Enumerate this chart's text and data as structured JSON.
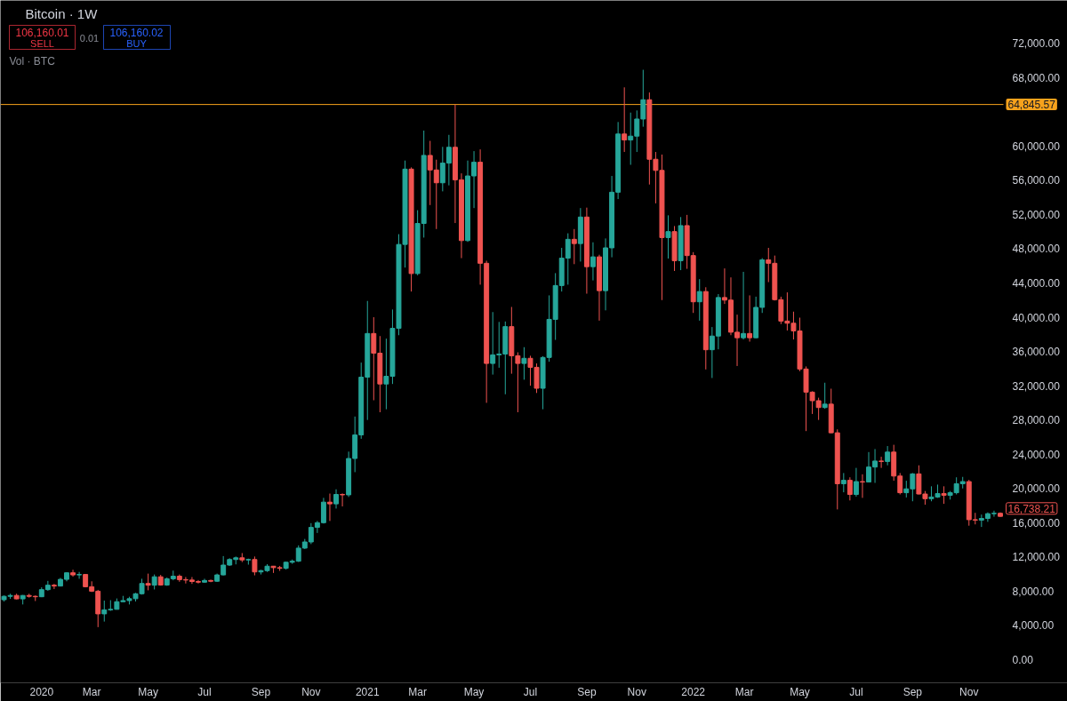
{
  "chart_data": {
    "type": "candlestick",
    "title": "Bitcoin · 1W",
    "x": [
      "2019-11-25",
      "2019-12-02",
      "2019-12-09",
      "2019-12-16",
      "2019-12-23",
      "2019-12-30",
      "2020-01-06",
      "2020-01-13",
      "2020-01-20",
      "2020-01-27",
      "2020-02-03",
      "2020-02-10",
      "2020-02-17",
      "2020-02-24",
      "2020-03-02",
      "2020-03-09",
      "2020-03-16",
      "2020-03-23",
      "2020-03-30",
      "2020-04-06",
      "2020-04-13",
      "2020-04-20",
      "2020-04-27",
      "2020-05-04",
      "2020-05-11",
      "2020-05-18",
      "2020-05-25",
      "2020-06-01",
      "2020-06-08",
      "2020-06-15",
      "2020-06-22",
      "2020-06-29",
      "2020-07-06",
      "2020-07-13",
      "2020-07-20",
      "2020-07-27",
      "2020-08-03",
      "2020-08-10",
      "2020-08-17",
      "2020-08-24",
      "2020-08-31",
      "2020-09-07",
      "2020-09-14",
      "2020-09-21",
      "2020-09-28",
      "2020-10-05",
      "2020-10-12",
      "2020-10-19",
      "2020-10-26",
      "2020-11-02",
      "2020-11-09",
      "2020-11-16",
      "2020-11-23",
      "2020-11-30",
      "2020-12-07",
      "2020-12-14",
      "2020-12-21",
      "2020-12-28",
      "2021-01-04",
      "2021-01-11",
      "2021-01-18",
      "2021-01-25",
      "2021-02-01",
      "2021-02-08",
      "2021-02-15",
      "2021-02-22",
      "2021-03-01",
      "2021-03-08",
      "2021-03-15",
      "2021-03-22",
      "2021-03-29",
      "2021-04-05",
      "2021-04-12",
      "2021-04-19",
      "2021-04-26",
      "2021-05-03",
      "2021-05-10",
      "2021-05-17",
      "2021-05-24",
      "2021-05-31",
      "2021-06-07",
      "2021-06-14",
      "2021-06-21",
      "2021-06-28",
      "2021-07-05",
      "2021-07-12",
      "2021-07-19",
      "2021-07-26",
      "2021-08-02",
      "2021-08-09",
      "2021-08-16",
      "2021-08-23",
      "2021-08-30",
      "2021-09-06",
      "2021-09-13",
      "2021-09-20",
      "2021-09-27",
      "2021-10-04",
      "2021-10-11",
      "2021-10-18",
      "2021-10-25",
      "2021-11-01",
      "2021-11-08",
      "2021-11-15",
      "2021-11-22",
      "2021-11-29",
      "2021-12-06",
      "2021-12-13",
      "2021-12-20",
      "2021-12-27",
      "2022-01-03",
      "2022-01-10",
      "2022-01-17",
      "2022-01-24",
      "2022-01-31",
      "2022-02-07",
      "2022-02-14",
      "2022-02-21",
      "2022-02-28",
      "2022-03-07",
      "2022-03-14",
      "2022-03-21",
      "2022-03-28",
      "2022-04-04",
      "2022-04-11",
      "2022-04-18",
      "2022-04-25",
      "2022-05-02",
      "2022-05-09",
      "2022-05-16",
      "2022-05-23",
      "2022-05-30",
      "2022-06-06",
      "2022-06-13",
      "2022-06-20",
      "2022-06-27",
      "2022-07-04",
      "2022-07-11",
      "2022-07-18",
      "2022-07-25",
      "2022-08-01",
      "2022-08-08",
      "2022-08-15",
      "2022-08-22",
      "2022-08-29",
      "2022-09-05",
      "2022-09-12",
      "2022-09-19",
      "2022-09-26",
      "2022-10-03",
      "2022-10-10",
      "2022-10-17",
      "2022-10-24",
      "2022-10-31",
      "2022-11-07",
      "2022-11-14",
      "2022-11-21",
      "2022-11-28",
      "2022-12-05",
      "2022-12-12"
    ],
    "ohlc": [
      [
        7000,
        7500,
        6800,
        7400
      ],
      [
        7400,
        7700,
        7100,
        7500
      ],
      [
        7500,
        7700,
        7050,
        7100
      ],
      [
        7100,
        7550,
        6450,
        7500
      ],
      [
        7500,
        7700,
        7250,
        7400
      ],
      [
        7400,
        7500,
        6850,
        7350
      ],
      [
        7350,
        8450,
        7300,
        8180
      ],
      [
        8180,
        9200,
        8050,
        8700
      ],
      [
        8700,
        8850,
        8250,
        8600
      ],
      [
        8600,
        9550,
        8550,
        9380
      ],
      [
        9380,
        10200,
        9150,
        10150
      ],
      [
        10150,
        10500,
        9700,
        9900
      ],
      [
        9900,
        10250,
        9450,
        9950
      ],
      [
        9950,
        9970,
        8450,
        8520
      ],
      [
        8520,
        9150,
        7900,
        8000
      ],
      [
        8000,
        8150,
        3800,
        5350
      ],
      [
        5350,
        6900,
        4450,
        5820
      ],
      [
        5820,
        6950,
        5700,
        5880
      ],
      [
        5880,
        7150,
        5850,
        6770
      ],
      [
        6770,
        7450,
        6750,
        6900
      ],
      [
        6900,
        7350,
        6450,
        7120
      ],
      [
        7120,
        7800,
        6800,
        7700
      ],
      [
        7700,
        9450,
        7600,
        8900
      ],
      [
        8900,
        10050,
        8100,
        8700
      ],
      [
        8700,
        9950,
        8200,
        9680
      ],
      [
        9680,
        9900,
        8650,
        8720
      ],
      [
        8720,
        9600,
        8630,
        9450
      ],
      [
        9450,
        10400,
        9270,
        9750
      ],
      [
        9750,
        9950,
        9100,
        9350
      ],
      [
        9350,
        9650,
        8900,
        9300
      ],
      [
        9300,
        9650,
        8850,
        9130
      ],
      [
        9130,
        9300,
        8900,
        9050
      ],
      [
        9050,
        9450,
        9000,
        9250
      ],
      [
        9250,
        9350,
        9050,
        9160
      ],
      [
        9160,
        10050,
        9100,
        9900
      ],
      [
        9900,
        12100,
        9850,
        11050
      ],
      [
        11050,
        11850,
        10950,
        11700
      ],
      [
        11700,
        12050,
        11130,
        11900
      ],
      [
        11900,
        12450,
        11400,
        11650
      ],
      [
        11650,
        11800,
        11100,
        11700
      ],
      [
        11700,
        12050,
        9850,
        10250
      ],
      [
        10250,
        10500,
        9950,
        10400
      ],
      [
        10400,
        11150,
        10250,
        10920
      ],
      [
        10920,
        10950,
        10130,
        10750
      ],
      [
        10750,
        10950,
        10370,
        10670
      ],
      [
        10670,
        11450,
        10530,
        11380
      ],
      [
        11380,
        11700,
        11200,
        11500
      ],
      [
        11500,
        13350,
        11420,
        13030
      ],
      [
        13030,
        14100,
        12930,
        13750
      ],
      [
        13750,
        15950,
        13500,
        15450
      ],
      [
        15450,
        16200,
        14800,
        16000
      ],
      [
        16000,
        18900,
        15900,
        18400
      ],
      [
        18400,
        19400,
        16200,
        18200
      ],
      [
        18200,
        19900,
        17650,
        19300
      ],
      [
        19300,
        19420,
        17900,
        19250
      ],
      [
        19250,
        24300,
        19000,
        23500
      ],
      [
        23500,
        28400,
        21900,
        26250
      ],
      [
        26250,
        34700,
        25800,
        33000
      ],
      [
        33000,
        41900,
        28000,
        38100
      ],
      [
        38100,
        40000,
        30300,
        35800
      ],
      [
        35800,
        37800,
        28900,
        32200
      ],
      [
        32200,
        37500,
        29250,
        33100
      ],
      [
        33100,
        40900,
        32200,
        38700
      ],
      [
        38700,
        49700,
        37900,
        48500
      ],
      [
        48500,
        58300,
        45800,
        57300
      ],
      [
        57300,
        57500,
        43000,
        45100
      ],
      [
        45100,
        52500,
        44900,
        50950
      ],
      [
        50950,
        61800,
        49300,
        58900
      ],
      [
        58900,
        60600,
        53100,
        57200
      ],
      [
        57200,
        58400,
        50300,
        55700
      ],
      [
        55700,
        59900,
        54700,
        58000
      ],
      [
        58000,
        61300,
        55400,
        59850
      ],
      [
        59850,
        64850,
        51000,
        56050
      ],
      [
        56050,
        56800,
        46900,
        48950
      ],
      [
        48950,
        58300,
        48800,
        56500
      ],
      [
        56500,
        59400,
        52750,
        58100
      ],
      [
        58100,
        59600,
        43800,
        46300
      ],
      [
        46300,
        46600,
        30000,
        34600
      ],
      [
        34600,
        40600,
        33300,
        35600
      ],
      [
        35600,
        39450,
        34100,
        35700
      ],
      [
        35700,
        39500,
        31000,
        38900
      ],
      [
        38900,
        41200,
        33400,
        35500
      ],
      [
        35500,
        35900,
        28900,
        34600
      ],
      [
        34600,
        36500,
        32700,
        35200
      ],
      [
        35200,
        35500,
        32000,
        34150
      ],
      [
        34150,
        34600,
        31150,
        31700
      ],
      [
        31700,
        35450,
        29250,
        35300
      ],
      [
        35300,
        42550,
        34800,
        39750
      ],
      [
        39750,
        45150,
        37350,
        43700
      ],
      [
        43700,
        48100,
        43000,
        46900
      ],
      [
        46900,
        49800,
        43800,
        49100
      ],
      [
        49100,
        50300,
        46200,
        48600
      ],
      [
        48600,
        52750,
        46500,
        51700
      ],
      [
        51700,
        52800,
        42750,
        45900
      ],
      [
        45900,
        48750,
        44300,
        47050
      ],
      [
        47050,
        47300,
        39600,
        43100
      ],
      [
        43100,
        49200,
        40800,
        48100
      ],
      [
        48100,
        56500,
        47000,
        54600
      ],
      [
        54600,
        62800,
        53800,
        61400
      ],
      [
        61400,
        66850,
        59300,
        60700
      ],
      [
        60700,
        63900,
        57800,
        61150
      ],
      [
        61150,
        64150,
        59300,
        63150
      ],
      [
        63150,
        68900,
        62250,
        65400
      ],
      [
        65400,
        66250,
        55500,
        58450
      ],
      [
        58450,
        59300,
        53300,
        57150
      ],
      [
        57150,
        59000,
        42000,
        49300
      ],
      [
        49300,
        51900,
        46850,
        50000
      ],
      [
        50000,
        50650,
        45400,
        46600
      ],
      [
        46600,
        51700,
        45500,
        50700
      ],
      [
        50700,
        51950,
        45650,
        47200
      ],
      [
        47200,
        47600,
        40500,
        41800
      ],
      [
        41800,
        44450,
        39600,
        43000
      ],
      [
        43000,
        43500,
        33900,
        36200
      ],
      [
        36200,
        38850,
        32900,
        37800
      ],
      [
        37800,
        42700,
        36250,
        42300
      ],
      [
        42300,
        45700,
        41550,
        42000
      ],
      [
        42000,
        44650,
        37900,
        38250
      ],
      [
        38250,
        40300,
        34300,
        37600
      ],
      [
        37600,
        45300,
        37400,
        38100
      ],
      [
        38100,
        42550,
        37150,
        37600
      ],
      [
        37600,
        42400,
        37550,
        41150
      ],
      [
        41150,
        46900,
        40500,
        46700
      ],
      [
        46700,
        48100,
        44100,
        46300
      ],
      [
        46300,
        47200,
        41950,
        42050
      ],
      [
        42050,
        42400,
        39200,
        39550
      ],
      [
        39550,
        42900,
        38450,
        39300
      ],
      [
        39300,
        40650,
        37400,
        38400
      ],
      [
        38400,
        39950,
        33700,
        33950
      ],
      [
        33950,
        34250,
        26700,
        31250
      ],
      [
        31250,
        31350,
        28700,
        30250
      ],
      [
        30250,
        30600,
        28000,
        29450
      ],
      [
        29450,
        32350,
        29300,
        29850
      ],
      [
        29850,
        31650,
        26450,
        26500
      ],
      [
        26500,
        26900,
        17550,
        20550
      ],
      [
        20550,
        21800,
        19550,
        20950
      ],
      [
        20950,
        21300,
        18600,
        19300
      ],
      [
        19300,
        22400,
        19050,
        20800
      ],
      [
        20800,
        21650,
        18900,
        20750
      ],
      [
        20750,
        24250,
        20700,
        22500
      ],
      [
        22500,
        24600,
        20650,
        23200
      ],
      [
        23200,
        23700,
        22400,
        23150
      ],
      [
        23150,
        24950,
        22700,
        24250
      ],
      [
        24250,
        25100,
        20900,
        21450
      ],
      [
        21450,
        21800,
        19300,
        19500
      ],
      [
        19500,
        20900,
        18950,
        19950
      ],
      [
        19950,
        21800,
        18500,
        21700
      ],
      [
        21700,
        22700,
        19300,
        19350
      ],
      [
        19350,
        19700,
        18100,
        18800
      ],
      [
        18800,
        20250,
        18500,
        19000
      ],
      [
        19000,
        20450,
        18900,
        19400
      ],
      [
        19400,
        20250,
        18200,
        19200
      ],
      [
        19200,
        19700,
        18700,
        19500
      ],
      [
        19500,
        21300,
        19300,
        20550
      ],
      [
        20550,
        21350,
        20000,
        20800
      ],
      [
        20800,
        21000,
        15650,
        16350
      ],
      [
        16350,
        17150,
        15800,
        16300
      ],
      [
        16300,
        16950,
        15500,
        16500
      ],
      [
        16500,
        17200,
        16100,
        17050
      ],
      [
        17050,
        17400,
        16700,
        17100
      ],
      [
        17100,
        17200,
        16700,
        16738.21
      ]
    ],
    "colors": [
      "#26a69a",
      "#26a69a",
      "#ef5350",
      "#26a69a",
      "#ef5350",
      "#ef5350",
      "#26a69a",
      "#26a69a",
      "#ef5350",
      "#26a69a",
      "#26a69a",
      "#ef5350",
      "#26a69a",
      "#ef5350",
      "#ef5350",
      "#ef5350",
      "#26a69a",
      "#26a69a",
      "#26a69a",
      "#26a69a",
      "#26a69a",
      "#26a69a",
      "#26a69a",
      "#ef5350",
      "#26a69a",
      "#ef5350",
      "#26a69a",
      "#26a69a",
      "#ef5350",
      "#ef5350",
      "#ef5350",
      "#ef5350",
      "#26a69a",
      "#ef5350",
      "#26a69a",
      "#26a69a",
      "#26a69a",
      "#26a69a",
      "#ef5350",
      "#26a69a",
      "#ef5350",
      "#26a69a",
      "#26a69a",
      "#ef5350",
      "#ef5350",
      "#26a69a",
      "#26a69a",
      "#26a69a",
      "#26a69a",
      "#26a69a",
      "#26a69a",
      "#26a69a",
      "#ef5350",
      "#26a69a",
      "#ef5350",
      "#26a69a",
      "#26a69a",
      "#26a69a",
      "#26a69a",
      "#ef5350",
      "#ef5350",
      "#26a69a",
      "#26a69a",
      "#26a69a",
      "#26a69a",
      "#ef5350",
      "#26a69a",
      "#26a69a",
      "#ef5350",
      "#ef5350",
      "#26a69a",
      "#26a69a",
      "#ef5350",
      "#ef5350",
      "#26a69a",
      "#26a69a",
      "#ef5350",
      "#ef5350",
      "#26a69a",
      "#26a69a",
      "#26a69a",
      "#ef5350",
      "#ef5350",
      "#26a69a",
      "#ef5350",
      "#ef5350",
      "#26a69a",
      "#26a69a",
      "#26a69a",
      "#26a69a",
      "#26a69a",
      "#ef5350",
      "#26a69a",
      "#ef5350",
      "#26a69a",
      "#ef5350",
      "#26a69a",
      "#26a69a",
      "#26a69a",
      "#ef5350",
      "#26a69a",
      "#26a69a",
      "#26a69a",
      "#ef5350",
      "#ef5350",
      "#ef5350",
      "#26a69a",
      "#ef5350",
      "#26a69a",
      "#ef5350",
      "#ef5350",
      "#26a69a",
      "#ef5350",
      "#26a69a",
      "#26a69a",
      "#ef5350",
      "#ef5350",
      "#ef5350",
      "#26a69a",
      "#ef5350",
      "#26a69a",
      "#26a69a",
      "#ef5350",
      "#ef5350",
      "#ef5350",
      "#ef5350",
      "#ef5350",
      "#ef5350",
      "#ef5350",
      "#ef5350",
      "#ef5350",
      "#26a69a",
      "#ef5350",
      "#ef5350",
      "#26a69a",
      "#ef5350",
      "#26a69a",
      "#ef5350",
      "#26a69a",
      "#26a69a",
      "#ef5350",
      "#26a69a",
      "#ef5350",
      "#ef5350",
      "#26a69a",
      "#26a69a",
      "#ef5350",
      "#ef5350",
      "#26a69a",
      "#26a69a",
      "#ef5350",
      "#26a69a",
      "#26a69a",
      "#26a69a",
      "#ef5350",
      "#ef5350",
      "#26a69a",
      "#26a69a",
      "#26a69a",
      "#ef5350"
    ],
    "xlim": [
      "2019-11-21",
      "2023-02-25"
    ],
    "xticks": [
      {
        "value": "2020-01-06",
        "label": "2020"
      },
      {
        "value": "2020-03-02",
        "label": "Mar"
      },
      {
        "value": "2020-05-04",
        "label": "May"
      },
      {
        "value": "2020-07-06",
        "label": "Jul"
      },
      {
        "value": "2020-09-07",
        "label": "Sep"
      },
      {
        "value": "2020-11-02",
        "label": "Nov"
      },
      {
        "value": "2021-01-04",
        "label": "2021"
      },
      {
        "value": "2021-03-01",
        "label": "Mar"
      },
      {
        "value": "2021-05-03",
        "label": "May"
      },
      {
        "value": "2021-07-05",
        "label": "Jul"
      },
      {
        "value": "2021-09-06",
        "label": "Sep"
      },
      {
        "value": "2021-11-01",
        "label": "Nov"
      },
      {
        "value": "2022-01-03",
        "label": "2022"
      },
      {
        "value": "2022-03-01",
        "label": "Mar"
      },
      {
        "value": "2022-05-02",
        "label": "May"
      },
      {
        "value": "2022-07-04",
        "label": "Jul"
      },
      {
        "value": "2022-09-05",
        "label": "Sep"
      },
      {
        "value": "2022-11-07",
        "label": "Nov"
      }
    ],
    "ylim": [
      -2700,
      77000
    ],
    "yticks": [
      {
        "value": 0,
        "label": "0.00"
      },
      {
        "value": 4000,
        "label": "4,000.00"
      },
      {
        "value": 8000,
        "label": "8,000.00"
      },
      {
        "value": 12000,
        "label": "12,000.00"
      },
      {
        "value": 16000,
        "label": "16,000.00"
      },
      {
        "value": 20000,
        "label": "20,000.00"
      },
      {
        "value": 24000,
        "label": "24,000.00"
      },
      {
        "value": 28000,
        "label": "28,000.00"
      },
      {
        "value": 32000,
        "label": "32,000.00"
      },
      {
        "value": 36000,
        "label": "36,000.00"
      },
      {
        "value": 40000,
        "label": "40,000.00"
      },
      {
        "value": 44000,
        "label": "44,000.00"
      },
      {
        "value": 48000,
        "label": "48,000.00"
      },
      {
        "value": 52000,
        "label": "52,000.00"
      },
      {
        "value": 56000,
        "label": "56,000.00"
      },
      {
        "value": 60000,
        "label": "60,000.00"
      },
      {
        "value": 68000,
        "label": "68,000.00"
      },
      {
        "value": 72000,
        "label": "72,000.00"
      }
    ],
    "ref_lines": [
      {
        "axis": "y",
        "value": 64845.57,
        "label": "64,845.57",
        "color": "#f7a21c"
      }
    ],
    "annotations": [
      "106,160.01",
      "SELL",
      "0.01",
      "106,160.02",
      "BUY",
      "Vol · BTC",
      {
        "text": "16,738.21",
        "x": "2022-12-12",
        "y": 16738.21
      }
    ]
  }
}
